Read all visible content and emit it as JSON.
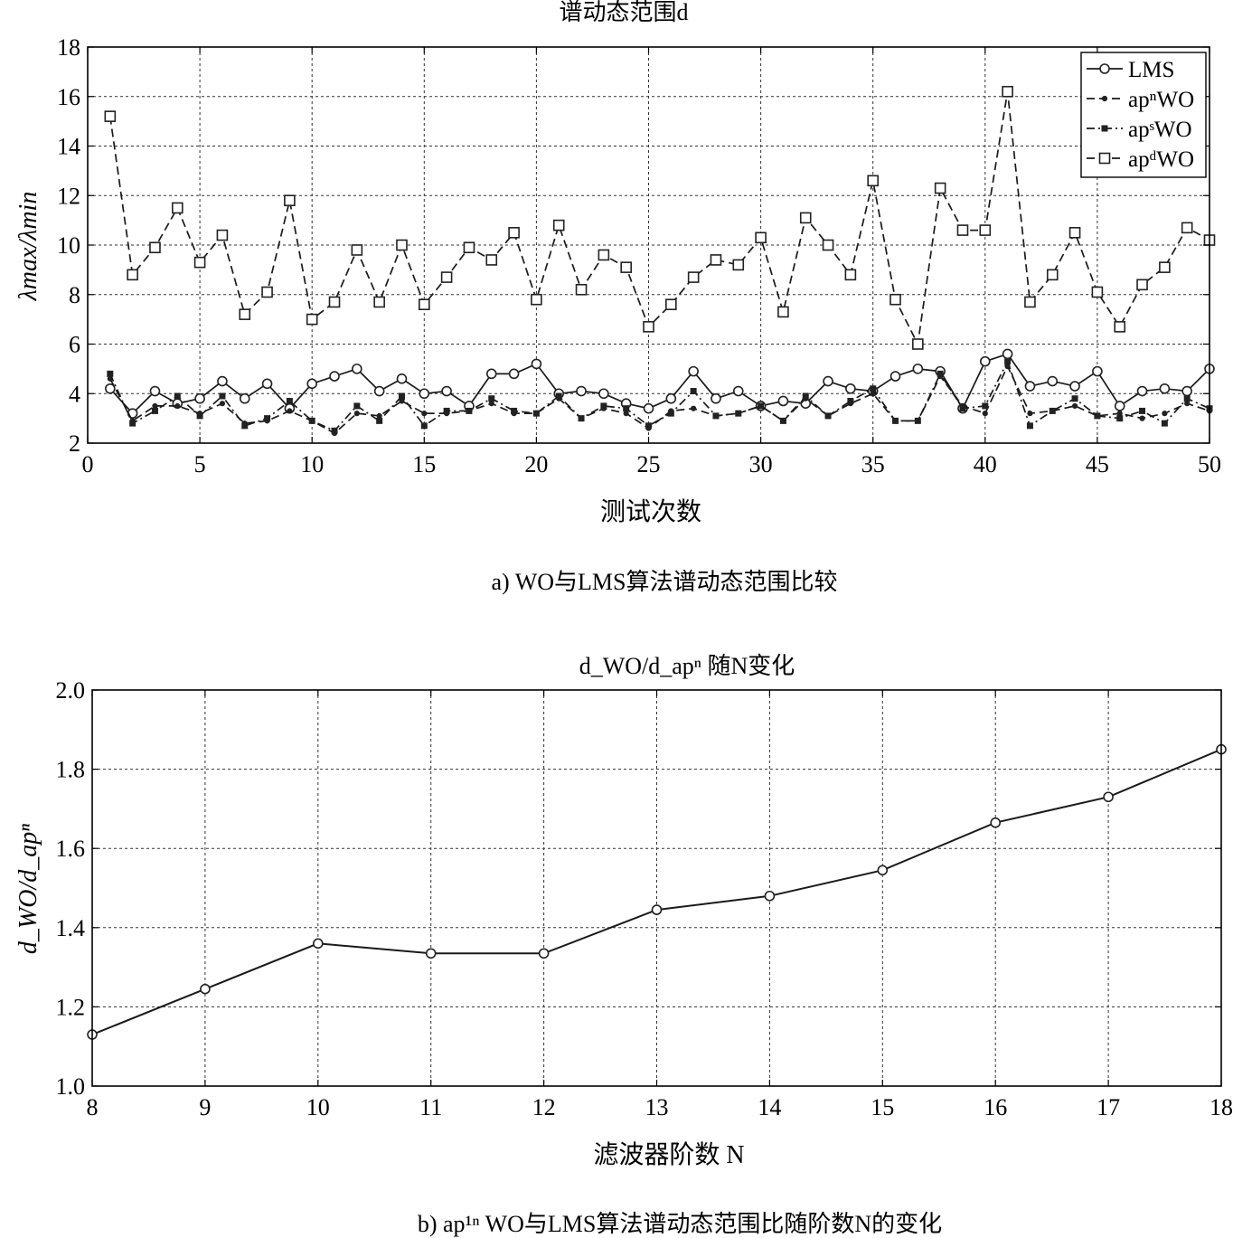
{
  "chart_data": [
    {
      "type": "line",
      "title": "谱动态范围d",
      "xlabel": "测试次数",
      "ylabel": "λmax/λmin",
      "caption": "a) WO与LMS算法谱动态范围比较",
      "xlim": [
        0,
        50
      ],
      "ylim": [
        2,
        18
      ],
      "xticks": [
        0,
        5,
        10,
        15,
        20,
        25,
        30,
        35,
        40,
        45,
        50
      ],
      "yticks": [
        2,
        4,
        6,
        8,
        10,
        12,
        14,
        16,
        18
      ],
      "grid": true,
      "legend_position": "top-right",
      "x": [
        1,
        2,
        3,
        4,
        5,
        6,
        7,
        8,
        9,
        10,
        11,
        12,
        13,
        14,
        15,
        16,
        17,
        18,
        19,
        20,
        21,
        22,
        23,
        24,
        25,
        26,
        27,
        28,
        29,
        30,
        31,
        32,
        33,
        34,
        35,
        36,
        37,
        38,
        39,
        40,
        41,
        42,
        43,
        44,
        45,
        46,
        47,
        48,
        49,
        50
      ],
      "series": [
        {
          "name": "LMS",
          "marker": "circle",
          "dash": "solid",
          "values": [
            4.2,
            3.2,
            4.1,
            3.6,
            3.8,
            4.5,
            3.8,
            4.4,
            3.4,
            4.4,
            4.7,
            5.0,
            4.1,
            4.6,
            4.0,
            4.1,
            3.5,
            4.8,
            4.8,
            5.2,
            4.0,
            4.1,
            4.0,
            3.6,
            3.4,
            3.8,
            4.9,
            3.8,
            4.1,
            3.5,
            3.7,
            3.6,
            4.5,
            4.2,
            4.1,
            4.7,
            5.0,
            4.9,
            3.4,
            5.3,
            5.6,
            4.3,
            4.5,
            4.3,
            4.9,
            3.5,
            4.1,
            4.2,
            4.1,
            5.0
          ]
        },
        {
          "name": "apⁿWO",
          "marker": "dot",
          "dash": "dashed",
          "values": [
            4.6,
            2.9,
            3.5,
            3.5,
            3.2,
            3.6,
            2.8,
            2.9,
            3.3,
            2.9,
            2.4,
            3.2,
            3.1,
            3.7,
            3.2,
            3.2,
            3.3,
            3.6,
            3.2,
            3.2,
            3.8,
            3.0,
            3.4,
            3.2,
            2.6,
            3.3,
            3.4,
            3.1,
            3.2,
            3.5,
            2.9,
            3.8,
            3.1,
            3.6,
            4.0,
            2.9,
            2.9,
            4.7,
            3.5,
            3.2,
            5.1,
            3.2,
            3.3,
            3.5,
            3.1,
            3.2,
            3.0,
            3.2,
            3.6,
            3.3
          ]
        },
        {
          "name": "apˢWO",
          "marker": "square-small",
          "dash": "dashdot",
          "values": [
            4.8,
            2.8,
            3.3,
            3.9,
            3.1,
            3.9,
            2.7,
            3.0,
            3.7,
            2.9,
            2.5,
            3.5,
            2.9,
            3.9,
            2.7,
            3.3,
            3.3,
            3.8,
            3.3,
            3.2,
            3.9,
            3.0,
            3.5,
            3.4,
            2.7,
            3.2,
            4.1,
            3.1,
            3.2,
            3.5,
            2.9,
            3.9,
            3.1,
            3.7,
            4.2,
            2.9,
            2.9,
            4.8,
            3.4,
            3.5,
            5.3,
            2.7,
            3.3,
            3.8,
            3.1,
            3.0,
            3.3,
            2.8,
            3.8,
            3.4
          ]
        },
        {
          "name": "apᵈWO",
          "marker": "square",
          "dash": "dashed",
          "values": [
            15.2,
            8.8,
            9.9,
            11.5,
            9.3,
            10.4,
            7.2,
            8.1,
            11.8,
            7.0,
            7.7,
            9.8,
            7.7,
            10.0,
            7.6,
            8.7,
            9.9,
            9.4,
            10.5,
            7.8,
            10.8,
            8.2,
            9.6,
            9.1,
            6.7,
            7.6,
            8.7,
            9.4,
            9.2,
            10.3,
            7.3,
            11.1,
            10.0,
            8.8,
            12.6,
            7.8,
            6.0,
            12.3,
            10.6,
            10.6,
            16.2,
            7.7,
            8.8,
            10.5,
            8.1,
            6.7,
            8.4,
            9.1,
            10.7,
            10.2
          ]
        }
      ]
    },
    {
      "type": "line",
      "title": "d_WO/d_apⁿ 随N变化",
      "xlabel": "滤波器阶数 N",
      "ylabel": "d_WO/d_apⁿ",
      "caption": "b) ap¹ⁿ WO与LMS算法谱动态范围比随阶数N的变化",
      "xlim": [
        8,
        18
      ],
      "ylim": [
        1.0,
        2.0
      ],
      "xticks": [
        8,
        9,
        10,
        11,
        12,
        13,
        14,
        15,
        16,
        17,
        18
      ],
      "yticks": [
        "1.0",
        "1.2",
        "1.4",
        "1.6",
        "1.8",
        "2.0"
      ],
      "grid": true,
      "x": [
        8,
        9,
        10,
        11,
        12,
        13,
        14,
        15,
        16,
        17,
        18
      ],
      "series": [
        {
          "marker": "circle",
          "values": [
            1.13,
            1.245,
            1.36,
            1.335,
            1.335,
            1.445,
            1.48,
            1.545,
            1.665,
            1.73,
            1.85
          ]
        }
      ]
    }
  ]
}
